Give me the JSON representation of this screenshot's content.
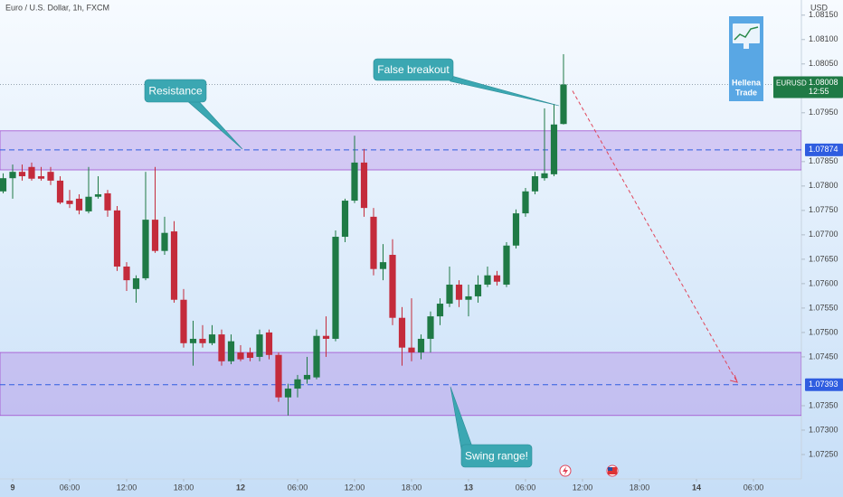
{
  "header": {
    "symbol": "Euro / U.S. Dollar, 1h, FXCM",
    "currency": "USD",
    "ticker": "EURUSD",
    "countdown": "12:55"
  },
  "logo": {
    "line1": "Hellena",
    "line2": "Trade"
  },
  "chart_data": {
    "type": "candlestick",
    "x": [
      -1,
      0,
      1,
      2,
      3,
      4,
      5,
      6,
      7,
      8,
      9,
      10,
      11,
      12,
      13,
      14,
      15,
      16,
      17,
      18,
      19,
      20,
      21,
      22,
      23,
      24,
      25,
      26,
      27,
      28,
      29,
      30,
      31,
      32,
      33,
      34,
      35,
      36,
      37,
      38,
      39,
      40,
      41,
      42,
      43,
      44,
      45,
      46,
      47,
      48,
      49,
      50,
      51,
      52,
      53,
      54,
      55,
      56,
      57,
      58
    ],
    "open": [
      1.07789,
      1.07816,
      1.07829,
      1.07839,
      1.0782,
      1.07829,
      1.07811,
      1.0777,
      1.07774,
      1.07748,
      1.07778,
      1.07785,
      1.0775,
      1.07635,
      1.07589,
      1.07611,
      1.07731,
      1.07667,
      1.07707,
      1.07567,
      1.07478,
      1.07487,
      1.07478,
      1.07496,
      1.07441,
      1.07459,
      1.07459,
      1.0745,
      1.075,
      1.07454,
      1.07367,
      1.07385,
      1.07404,
      1.07408,
      1.07493,
      1.07487,
      1.07696,
      1.0777,
      1.07848,
      1.07737,
      1.0763,
      1.07659,
      1.0753,
      1.07469,
      1.07459,
      1.07487,
      1.07533,
      1.07559,
      1.07598,
      1.07567,
      1.07574,
      1.07598,
      1.07617,
      1.07598,
      1.07678,
      1.07744,
      1.07789,
      1.07816,
      1.07824,
      1.07927
    ],
    "high": [
      1.07826,
      1.07844,
      1.07844,
      1.07848,
      1.07839,
      1.07839,
      1.0782,
      1.07792,
      1.07783,
      1.07839,
      1.0782,
      1.07792,
      1.07759,
      1.07644,
      1.07617,
      1.07829,
      1.07839,
      1.07737,
      1.07728,
      1.07589,
      1.07524,
      1.07515,
      1.07515,
      1.07506,
      1.07496,
      1.07474,
      1.07469,
      1.07506,
      1.07506,
      1.07459,
      1.07395,
      1.07413,
      1.0745,
      1.07506,
      1.07533,
      1.07709,
      1.07774,
      1.07903,
      1.07876,
      1.07755,
      1.07681,
      1.07691,
      1.07552,
      1.0757,
      1.07496,
      1.07543,
      1.0757,
      1.07635,
      1.07607,
      1.07598,
      1.07617,
      1.07635,
      1.07626,
      1.07685,
      1.07752,
      1.07796,
      1.07829,
      1.07959,
      1.07968,
      1.0807
    ],
    "low": [
      1.07785,
      1.07774,
      1.07811,
      1.07811,
      1.07811,
      1.07802,
      1.07763,
      1.07755,
      1.07742,
      1.07744,
      1.07774,
      1.07737,
      1.07626,
      1.07585,
      1.07561,
      1.07607,
      1.07663,
      1.07659,
      1.07561,
      1.07469,
      1.07432,
      1.07469,
      1.07474,
      1.07432,
      1.07435,
      1.07441,
      1.07441,
      1.07441,
      1.07445,
      1.07358,
      1.0733,
      1.07367,
      1.07395,
      1.07404,
      1.0745,
      1.07482,
      1.07685,
      1.07765,
      1.07737,
      1.07617,
      1.07607,
      1.07515,
      1.07432,
      1.07441,
      1.07445,
      1.07459,
      1.07515,
      1.07552,
      1.07552,
      1.07533,
      1.07561,
      1.07593,
      1.07596,
      1.07593,
      1.07672,
      1.07737,
      1.07783,
      1.07811,
      1.0782,
      1.07926
    ],
    "close": [
      1.07816,
      1.07829,
      1.0782,
      1.07815,
      1.07815,
      1.07811,
      1.07766,
      1.07763,
      1.0775,
      1.07778,
      1.07783,
      1.0775,
      1.07635,
      1.07607,
      1.07611,
      1.07731,
      1.07667,
      1.07704,
      1.07567,
      1.07478,
      1.07487,
      1.07478,
      1.07496,
      1.07441,
      1.07482,
      1.07445,
      1.07448,
      1.07496,
      1.07454,
      1.07367,
      1.07385,
      1.07404,
      1.07413,
      1.07493,
      1.07487,
      1.07696,
      1.0777,
      1.07848,
      1.07755,
      1.0763,
      1.07644,
      1.0753,
      1.07469,
      1.07459,
      1.07487,
      1.07533,
      1.07559,
      1.07598,
      1.07567,
      1.07574,
      1.07598,
      1.07617,
      1.07604,
      1.07678,
      1.07744,
      1.07789,
      1.0782,
      1.07826,
      1.07926,
      1.08008
    ],
    "up_color": "#1f7a45",
    "down_color": "#c42b3b",
    "xlim": [
      -1.333,
      83.048
    ],
    "xticks": [
      {
        "value": 0,
        "label": "9"
      },
      {
        "value": 6,
        "label": "06:00"
      },
      {
        "value": 12,
        "label": "12:00"
      },
      {
        "value": 18,
        "label": "18:00"
      },
      {
        "value": 24,
        "label": "12"
      },
      {
        "value": 30,
        "label": "06:00"
      },
      {
        "value": 36,
        "label": "12:00"
      },
      {
        "value": 42,
        "label": "18:00"
      },
      {
        "value": 48,
        "label": "13"
      },
      {
        "value": 54,
        "label": "06:00"
      },
      {
        "value": 60,
        "label": "12:00"
      },
      {
        "value": 66,
        "label": "18:00"
      },
      {
        "value": 72,
        "label": "14"
      },
      {
        "value": 78,
        "label": "06:00"
      }
    ],
    "ylim": [
      1.072,
      1.08181
    ],
    "yticks": [
      {
        "value": 1.0815,
        "label": "1.08150"
      },
      {
        "value": 1.081,
        "label": "1.08100"
      },
      {
        "value": 1.0805,
        "label": "1.08050"
      },
      {
        "value": 1.0795,
        "label": "1.07950"
      },
      {
        "value": 1.0785,
        "label": "1.07850"
      },
      {
        "value": 1.078,
        "label": "1.07800"
      },
      {
        "value": 1.0775,
        "label": "1.07750"
      },
      {
        "value": 1.077,
        "label": "1.07700"
      },
      {
        "value": 1.0765,
        "label": "1.07650"
      },
      {
        "value": 1.076,
        "label": "1.07600"
      },
      {
        "value": 1.0755,
        "label": "1.07550"
      },
      {
        "value": 1.075,
        "label": "1.07500"
      },
      {
        "value": 1.0745,
        "label": "1.07450"
      },
      {
        "value": 1.0735,
        "label": "1.07350"
      },
      {
        "value": 1.073,
        "label": "1.07300"
      },
      {
        "value": 1.0725,
        "label": "1.07250"
      }
    ],
    "zones": [
      {
        "low": 1.07833,
        "high": 1.07913,
        "level": 1.07874
      },
      {
        "low": 1.0733,
        "high": 1.07459,
        "level": 1.07393
      }
    ],
    "projection": {
      "x": [
        58.95,
        76.3
      ],
      "y": [
        1.07995,
        1.07398
      ],
      "color": "#e0455a"
    },
    "annotations": [
      {
        "text": "Resistance"
      },
      {
        "text": "False breakout"
      },
      {
        "text": "Swing range!"
      }
    ]
  }
}
